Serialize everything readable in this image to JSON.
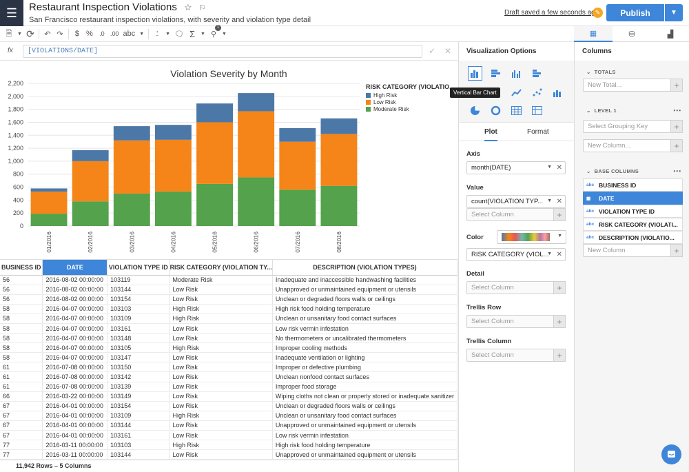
{
  "app": {
    "title": "Restaurant Inspection Violations",
    "subtitle": "San Francisco restaurant inspection violations, with severity and violation type detail",
    "draft_status": "Draft saved a few seconds ago",
    "publish_label": "Publish",
    "menu_icon": "hamburger-icon"
  },
  "toolbar": {
    "items": [
      "$",
      "%",
      ".0",
      ".00",
      "abc"
    ],
    "filter_badge": "1"
  },
  "formula": {
    "fx_label": "fx",
    "value": "[VIOLATIONS/DATE]"
  },
  "chart_data": {
    "type": "bar",
    "stacked": true,
    "title": "Violation Severity by Month",
    "xlabel": "",
    "ylabel": "",
    "ylim": [
      0,
      2200
    ],
    "yticks": [
      0,
      200,
      400,
      600,
      800,
      1000,
      1200,
      1400,
      1600,
      1800,
      2000,
      2200
    ],
    "ytick_labels": [
      "0",
      "200",
      "400",
      "600",
      "800",
      "1,000",
      "1,200",
      "1,400",
      "1,600",
      "1,800",
      "2,000",
      "2,200"
    ],
    "categories": [
      "01/2016",
      "02/2016",
      "03/2016",
      "04/2016",
      "05/2016",
      "06/2016",
      "07/2016",
      "08/2016"
    ],
    "legend_title": "RISK CATEGORY (VIOLATIO...",
    "legend_position": "top-right",
    "grid": true,
    "series": [
      {
        "name": "High Risk",
        "color": "#4c78a8",
        "values": [
          50,
          170,
          220,
          230,
          290,
          280,
          210,
          240
        ]
      },
      {
        "name": "Low Risk",
        "color": "#f58518",
        "values": [
          340,
          620,
          820,
          800,
          950,
          1020,
          740,
          800
        ]
      },
      {
        "name": "Moderate Risk",
        "color": "#54a24b",
        "values": [
          190,
          380,
          500,
          530,
          650,
          750,
          560,
          620
        ]
      }
    ]
  },
  "table": {
    "columns": [
      "BUSINESS ID",
      "DATE",
      "VIOLATION TYPE ID",
      "RISK CATEGORY (VIOLATION TY...",
      "DESCRIPTION (VIOLATION TYPES)"
    ],
    "selected_column": 1,
    "rows": [
      [
        "56",
        "2016-08-02 00:00:00",
        "103119",
        "Moderate Risk",
        "Inadequate and inaccessible handwashing facilities"
      ],
      [
        "56",
        "2016-08-02 00:00:00",
        "103144",
        "Low Risk",
        "Unapproved or unmaintained equipment or utensils"
      ],
      [
        "56",
        "2016-08-02 00:00:00",
        "103154",
        "Low Risk",
        "Unclean or degraded floors walls or ceilings"
      ],
      [
        "58",
        "2016-04-07 00:00:00",
        "103103",
        "High Risk",
        "High risk food holding temperature"
      ],
      [
        "58",
        "2016-04-07 00:00:00",
        "103109",
        "High Risk",
        "Unclean or unsanitary food contact surfaces"
      ],
      [
        "58",
        "2016-04-07 00:00:00",
        "103161",
        "Low Risk",
        "Low risk vermin infestation"
      ],
      [
        "58",
        "2016-04-07 00:00:00",
        "103148",
        "Low Risk",
        "No thermometers or uncalibrated thermometers"
      ],
      [
        "58",
        "2016-04-07 00:00:00",
        "103105",
        "High Risk",
        "Improper cooling methods"
      ],
      [
        "58",
        "2016-04-07 00:00:00",
        "103147",
        "Low Risk",
        "Inadequate ventilation or lighting"
      ],
      [
        "61",
        "2016-07-08 00:00:00",
        "103150",
        "Low Risk",
        "Improper or defective plumbing"
      ],
      [
        "61",
        "2016-07-08 00:00:00",
        "103142",
        "Low Risk",
        "Unclean nonfood contact surfaces"
      ],
      [
        "61",
        "2016-07-08 00:00:00",
        "103139",
        "Low Risk",
        "Improper food storage"
      ],
      [
        "66",
        "2016-03-22 00:00:00",
        "103149",
        "Low Risk",
        "Wiping cloths not clean or properly stored or inadequate sanitizer"
      ],
      [
        "67",
        "2016-04-01 00:00:00",
        "103154",
        "Low Risk",
        "Unclean or degraded floors walls or ceilings"
      ],
      [
        "67",
        "2016-04-01 00:00:00",
        "103109",
        "High Risk",
        "Unclean or unsanitary food contact surfaces"
      ],
      [
        "67",
        "2016-04-01 00:00:00",
        "103144",
        "Low Risk",
        "Unapproved or unmaintained equipment or utensils"
      ],
      [
        "67",
        "2016-04-01 00:00:00",
        "103161",
        "Low Risk",
        "Low risk vermin infestation"
      ],
      [
        "77",
        "2016-03-11 00:00:00",
        "103103",
        "High Risk",
        "High risk food holding temperature"
      ],
      [
        "77",
        "2016-03-11 00:00:00",
        "103144",
        "Low Risk",
        "Unapproved or unmaintained equipment or utensils"
      ]
    ],
    "footer": "11,942 Rows – 5 Columns"
  },
  "viz_panel": {
    "title": "Visualization Options",
    "tooltip": "Vertical Bar Chart",
    "tabs": [
      "Plot",
      "Format"
    ],
    "axis_label": "Axis",
    "axis_value": "month(DATE)",
    "value_label": "Value",
    "value_value": "count(VIOLATION TYP...",
    "value_placeholder": "Select Column",
    "color_label": "Color",
    "color_value": "RISK CATEGORY (VIOL...",
    "detail_label": "Detail",
    "detail_placeholder": "Select Column",
    "trellis_row_label": "Trellis Row",
    "trellis_row_placeholder": "Select Column",
    "trellis_col_label": "Trellis Column",
    "trellis_col_placeholder": "Select Column"
  },
  "columns_panel": {
    "title": "Columns",
    "totals_label": "TOTALS",
    "totals_placeholder": "New Total...",
    "level1_label": "LEVEL 1",
    "grouping_placeholder": "Select Grouping Key",
    "new_column_placeholder": "New Column...",
    "base_label": "BASE COLUMNS",
    "base_columns": [
      {
        "type": "abc",
        "name": "BUSINESS ID"
      },
      {
        "type": "date",
        "name": "DATE"
      },
      {
        "type": "abc",
        "name": "VIOLATION TYPE ID"
      },
      {
        "type": "abc",
        "name": "RISK CATEGORY (VIOLATI..."
      },
      {
        "type": "abc",
        "name": "DESCRIPTION (VIOLATIO..."
      }
    ],
    "base_new_column": "New Column"
  }
}
